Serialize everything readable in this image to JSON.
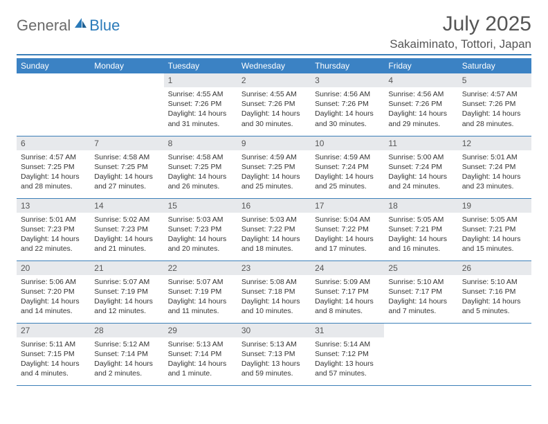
{
  "brand": {
    "general": "General",
    "blue": "Blue"
  },
  "title": "July 2025",
  "location": "Sakaiminato, Tottori, Japan",
  "colors": {
    "header_bar": "#3b82c4",
    "rule": "#3b7fb8",
    "daynum_bg": "#e7e9ec",
    "text": "#333333",
    "title_text": "#555555",
    "logo_gray": "#6a6a6a",
    "logo_blue": "#2a7ab9"
  },
  "day_names": [
    "Sunday",
    "Monday",
    "Tuesday",
    "Wednesday",
    "Thursday",
    "Friday",
    "Saturday"
  ],
  "weeks": [
    [
      null,
      null,
      {
        "n": "1",
        "sunrise": "4:55 AM",
        "sunset": "7:26 PM",
        "daylight": "14 hours and 31 minutes."
      },
      {
        "n": "2",
        "sunrise": "4:55 AM",
        "sunset": "7:26 PM",
        "daylight": "14 hours and 30 minutes."
      },
      {
        "n": "3",
        "sunrise": "4:56 AM",
        "sunset": "7:26 PM",
        "daylight": "14 hours and 30 minutes."
      },
      {
        "n": "4",
        "sunrise": "4:56 AM",
        "sunset": "7:26 PM",
        "daylight": "14 hours and 29 minutes."
      },
      {
        "n": "5",
        "sunrise": "4:57 AM",
        "sunset": "7:26 PM",
        "daylight": "14 hours and 28 minutes."
      }
    ],
    [
      {
        "n": "6",
        "sunrise": "4:57 AM",
        "sunset": "7:25 PM",
        "daylight": "14 hours and 28 minutes."
      },
      {
        "n": "7",
        "sunrise": "4:58 AM",
        "sunset": "7:25 PM",
        "daylight": "14 hours and 27 minutes."
      },
      {
        "n": "8",
        "sunrise": "4:58 AM",
        "sunset": "7:25 PM",
        "daylight": "14 hours and 26 minutes."
      },
      {
        "n": "9",
        "sunrise": "4:59 AM",
        "sunset": "7:25 PM",
        "daylight": "14 hours and 25 minutes."
      },
      {
        "n": "10",
        "sunrise": "4:59 AM",
        "sunset": "7:24 PM",
        "daylight": "14 hours and 25 minutes."
      },
      {
        "n": "11",
        "sunrise": "5:00 AM",
        "sunset": "7:24 PM",
        "daylight": "14 hours and 24 minutes."
      },
      {
        "n": "12",
        "sunrise": "5:01 AM",
        "sunset": "7:24 PM",
        "daylight": "14 hours and 23 minutes."
      }
    ],
    [
      {
        "n": "13",
        "sunrise": "5:01 AM",
        "sunset": "7:23 PM",
        "daylight": "14 hours and 22 minutes."
      },
      {
        "n": "14",
        "sunrise": "5:02 AM",
        "sunset": "7:23 PM",
        "daylight": "14 hours and 21 minutes."
      },
      {
        "n": "15",
        "sunrise": "5:03 AM",
        "sunset": "7:23 PM",
        "daylight": "14 hours and 20 minutes."
      },
      {
        "n": "16",
        "sunrise": "5:03 AM",
        "sunset": "7:22 PM",
        "daylight": "14 hours and 18 minutes."
      },
      {
        "n": "17",
        "sunrise": "5:04 AM",
        "sunset": "7:22 PM",
        "daylight": "14 hours and 17 minutes."
      },
      {
        "n": "18",
        "sunrise": "5:05 AM",
        "sunset": "7:21 PM",
        "daylight": "14 hours and 16 minutes."
      },
      {
        "n": "19",
        "sunrise": "5:05 AM",
        "sunset": "7:21 PM",
        "daylight": "14 hours and 15 minutes."
      }
    ],
    [
      {
        "n": "20",
        "sunrise": "5:06 AM",
        "sunset": "7:20 PM",
        "daylight": "14 hours and 14 minutes."
      },
      {
        "n": "21",
        "sunrise": "5:07 AM",
        "sunset": "7:19 PM",
        "daylight": "14 hours and 12 minutes."
      },
      {
        "n": "22",
        "sunrise": "5:07 AM",
        "sunset": "7:19 PM",
        "daylight": "14 hours and 11 minutes."
      },
      {
        "n": "23",
        "sunrise": "5:08 AM",
        "sunset": "7:18 PM",
        "daylight": "14 hours and 10 minutes."
      },
      {
        "n": "24",
        "sunrise": "5:09 AM",
        "sunset": "7:17 PM",
        "daylight": "14 hours and 8 minutes."
      },
      {
        "n": "25",
        "sunrise": "5:10 AM",
        "sunset": "7:17 PM",
        "daylight": "14 hours and 7 minutes."
      },
      {
        "n": "26",
        "sunrise": "5:10 AM",
        "sunset": "7:16 PM",
        "daylight": "14 hours and 5 minutes."
      }
    ],
    [
      {
        "n": "27",
        "sunrise": "5:11 AM",
        "sunset": "7:15 PM",
        "daylight": "14 hours and 4 minutes."
      },
      {
        "n": "28",
        "sunrise": "5:12 AM",
        "sunset": "7:14 PM",
        "daylight": "14 hours and 2 minutes."
      },
      {
        "n": "29",
        "sunrise": "5:13 AM",
        "sunset": "7:14 PM",
        "daylight": "14 hours and 1 minute."
      },
      {
        "n": "30",
        "sunrise": "5:13 AM",
        "sunset": "7:13 PM",
        "daylight": "13 hours and 59 minutes."
      },
      {
        "n": "31",
        "sunrise": "5:14 AM",
        "sunset": "7:12 PM",
        "daylight": "13 hours and 57 minutes."
      },
      null,
      null
    ]
  ],
  "labels": {
    "sunrise": "Sunrise: ",
    "sunset": "Sunset: ",
    "daylight": "Daylight: "
  }
}
